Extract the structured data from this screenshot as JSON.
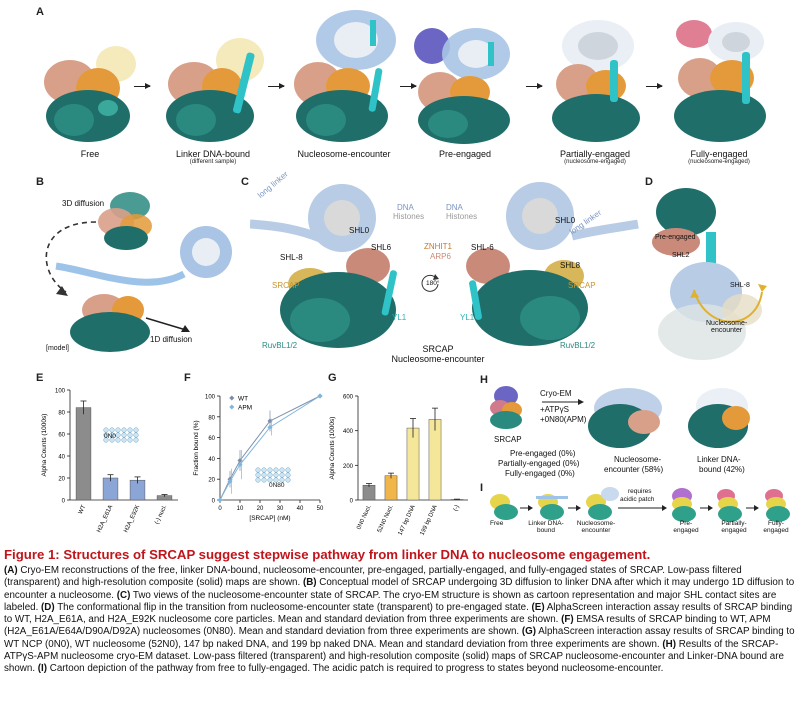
{
  "panels": {
    "a": "A",
    "b": "B",
    "c": "C",
    "d": "D",
    "e": "E",
    "f": "F",
    "g": "G",
    "h": "H",
    "i": "I"
  },
  "panel_a": {
    "states": [
      {
        "label": "Free",
        "sub": ""
      },
      {
        "label": "Linker DNA-bound",
        "sub": "(different sample)"
      },
      {
        "label": "Nucleosome-encounter",
        "sub": ""
      },
      {
        "label": "Pre-engaged",
        "sub": ""
      },
      {
        "label": "Partially-engaged",
        "sub": "(nucleosome-engaged)"
      },
      {
        "label": "Fully-engaged",
        "sub": "(nucleosome-engaged)"
      }
    ]
  },
  "panel_b": {
    "diffusion3d": "3D diffusion",
    "diffusion1d": "1D diffusion",
    "model": "[model]"
  },
  "panel_c": {
    "long_linker": "long linker",
    "dna": "DNA",
    "histones": "Histones",
    "shl0": "SHL0",
    "shl6": "SHL6",
    "shl8_left": "SHL-8",
    "shl6_right": "SHL-6",
    "shl8_right": "SHL8",
    "srcap": "SRCAP",
    "znhit1": "ZNHIT1",
    "arp6": "ARP6",
    "rotation": "180°",
    "yl1": "YL1",
    "ruvbl": "RuvBL1/2",
    "title_line1": "SRCAP",
    "title_line2": "Nucleosome-encounter"
  },
  "panel_d": {
    "pre_engaged": "Pre-engaged",
    "shl2": "SHL2",
    "shl_minus8": "SHL-8",
    "encounter": "Nucleosome-\nencounter"
  },
  "panel_h": {
    "srcap": "SRCAP",
    "cryo": "Cryo-EM",
    "conditions": [
      "+ATPγS",
      "+0N80(APM)"
    ],
    "percents": [
      "Pre-engaged (0%)",
      "Partially-engaged (0%)",
      "Fully-engaged (0%)"
    ],
    "encounter_label": [
      "Nucleosome-",
      "encounter (58%)"
    ],
    "linker_label": [
      "Linker DNA-",
      "bound (42%)"
    ]
  },
  "panel_i": {
    "steps": [
      "Free",
      "Linker DNA-bound",
      "Nucleosome-encounter",
      "Pre-engaged",
      "Partially-engaged",
      "Fully-engaged"
    ],
    "note": [
      "requires",
      "acidic patch"
    ]
  },
  "colors": {
    "teal": "#1f6e6a",
    "cyan": "#2fc3c8",
    "orange": "#e49a3a",
    "cream": "#f2e6b0",
    "pink": "#d07a8b",
    "lightblue": "#a9c4e4",
    "purple": "#6b66c4",
    "caption_red": "#c0151b",
    "bar_grey": "#8c8c8c",
    "bar_blue": "#8aa5d6",
    "bar_yellow": "#f5e79a",
    "bar_orange": "#f0b64a"
  },
  "chart_data": [
    {
      "type": "bar",
      "panel": "E",
      "ylabel": "Alpha Counts (1000s)",
      "categories": [
        "WT",
        "H2A_E61A",
        "H2A_E92K",
        "(-) nucl."
      ],
      "values": [
        84,
        20,
        18,
        4
      ],
      "errors": [
        6,
        3,
        3,
        1
      ],
      "ylim": [
        0,
        100
      ],
      "yticks": [
        0,
        20,
        40,
        60,
        80,
        100
      ],
      "inset_label": "0N0"
    },
    {
      "type": "line",
      "panel": "F",
      "xlabel": "[SRCAP] (nM)",
      "ylabel": "Fraction bound (%)",
      "xlim": [
        0,
        50
      ],
      "ylim": [
        0,
        100
      ],
      "xticks": [
        0,
        10,
        20,
        30,
        40,
        50
      ],
      "yticks": [
        0,
        20,
        40,
        60,
        80,
        100
      ],
      "legend": "top-left",
      "inset_label": "0N80",
      "series": [
        {
          "name": "WT",
          "x": [
            0,
            5,
            10,
            25,
            50
          ],
          "y": [
            0,
            20,
            38,
            76,
            100
          ],
          "err": [
            0,
            8,
            10,
            10,
            0
          ]
        },
        {
          "name": "APM",
          "x": [
            0,
            5,
            10,
            25,
            50
          ],
          "y": [
            0,
            18,
            34,
            70,
            100
          ],
          "err": [
            0,
            12,
            14,
            8,
            0
          ]
        }
      ]
    },
    {
      "type": "bar",
      "panel": "G",
      "ylabel": "Alpha Counts (1000s)",
      "categories": [
        "0N0 Nucl.",
        "52N0 Nucl.",
        "147 bp DNA",
        "199 bp DNA",
        "(-)"
      ],
      "values": [
        85,
        140,
        415,
        465,
        3
      ],
      "errors": [
        10,
        15,
        55,
        65,
        2
      ],
      "ylim": [
        0,
        600
      ],
      "yticks": [
        0,
        200,
        400,
        600
      ]
    }
  ],
  "caption": {
    "title": "Figure 1: Structures of SRCAP suggest stepwise pathway from linker DNA to nucleosome engagement.",
    "paragraphs": [
      {
        "letter": "(A)",
        "text": " Cryo-EM reconstructions of the free, linker DNA-bound, nucleosome-encounter, pre-engaged, partially-engaged, and fully-engaged states of SRCAP. Low-pass filtered (transparent) and high-resolution composite (solid) maps are shown. "
      },
      {
        "letter": "(B)",
        "text": " Conceptual model of SRCAP undergoing 3D diffusion to linker DNA after which it may undergo 1D diffusion to encounter a nucleosome. "
      },
      {
        "letter": "(C)",
        "text": " Two views of the nucleosome-encounter state of SRCAP. The cryo-EM structure is shown as cartoon representation and major SHL contact sites are labeled. "
      },
      {
        "letter": "(D)",
        "text": " The conformational flip in the transition from nucleosome-encounter state (transparent) to pre-engaged state. "
      },
      {
        "letter": "(E)",
        "text": " AlphaScreen interaction assay results of SRCAP binding to WT, H2A_E61A, and H2A_E92K nucleosome core particles. Mean and standard deviation from three experiments are shown. "
      },
      {
        "letter": "(F)",
        "text": " EMSA results of SRCAP binding to WT, APM (H2A_E61A/E64A/D90A/D92A) nucleosomes (0N80). Mean and standard deviation from three experiments are shown. "
      },
      {
        "letter": "(G)",
        "text": " AlphaScreen interaction assay results of SRCAP binding to WT NCP (0N0), WT nucleosome (52N0), 147 bp naked DNA, and 199 bp naked DNA. Mean and standard deviation from three experiments are shown. "
      },
      {
        "letter": "(H)",
        "text": " Results of the SRCAP-ATPγS-APM nucleosome cryo-EM dataset. Low-pass filtered (transparent) and high-resolution composite (solid) maps of SRCAP nucleosome-encounter and Linker-DNA bound are shown. "
      },
      {
        "letter": "(I)",
        "text": " Cartoon depiction of the pathway from free to fully-engaged. The acidic patch is required to progress to states beyond nucleosome-encounter."
      }
    ]
  }
}
